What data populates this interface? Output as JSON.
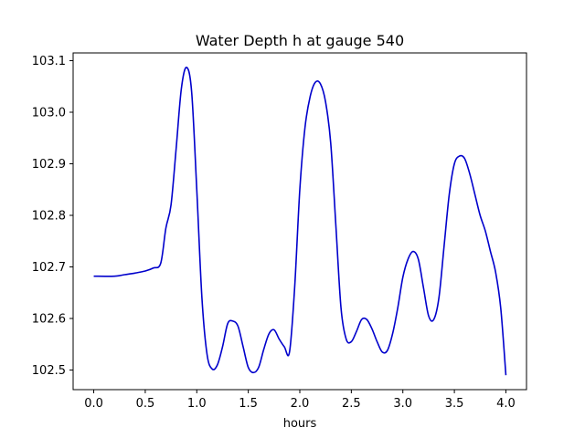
{
  "chart_data": {
    "type": "line",
    "title": "Water Depth h at gauge 540",
    "xlabel": "hours",
    "ylabel": "",
    "xlim": [
      -0.2,
      4.2
    ],
    "ylim": [
      102.462,
      103.115
    ],
    "xticks": [
      0.0,
      0.5,
      1.0,
      1.5,
      2.0,
      2.5,
      3.0,
      3.5,
      4.0
    ],
    "xtick_labels": [
      "0.0",
      "0.5",
      "1.0",
      "1.5",
      "2.0",
      "2.5",
      "3.0",
      "3.5",
      "4.0"
    ],
    "yticks": [
      102.5,
      102.6,
      102.7,
      102.8,
      102.9,
      103.0,
      103.1
    ],
    "ytick_labels": [
      "102.5",
      "102.6",
      "102.7",
      "102.8",
      "102.9",
      "103.0",
      "103.1"
    ],
    "grid": false,
    "series": [
      {
        "color": "#0000cc",
        "points": [
          [
            0.0,
            102.682
          ],
          [
            0.2,
            102.682
          ],
          [
            0.3,
            102.685
          ],
          [
            0.4,
            102.688
          ],
          [
            0.5,
            102.692
          ],
          [
            0.58,
            102.698
          ],
          [
            0.65,
            102.707
          ],
          [
            0.7,
            102.775
          ],
          [
            0.75,
            102.82
          ],
          [
            0.8,
            102.93
          ],
          [
            0.85,
            103.045
          ],
          [
            0.9,
            103.087
          ],
          [
            0.95,
            103.04
          ],
          [
            1.0,
            102.85
          ],
          [
            1.05,
            102.64
          ],
          [
            1.1,
            102.53
          ],
          [
            1.15,
            102.502
          ],
          [
            1.2,
            102.51
          ],
          [
            1.25,
            102.545
          ],
          [
            1.3,
            102.59
          ],
          [
            1.35,
            102.595
          ],
          [
            1.4,
            102.585
          ],
          [
            1.45,
            102.545
          ],
          [
            1.5,
            102.505
          ],
          [
            1.55,
            102.495
          ],
          [
            1.6,
            102.505
          ],
          [
            1.65,
            102.54
          ],
          [
            1.7,
            102.57
          ],
          [
            1.75,
            102.578
          ],
          [
            1.8,
            102.56
          ],
          [
            1.85,
            102.545
          ],
          [
            1.9,
            102.535
          ],
          [
            1.95,
            102.66
          ],
          [
            2.0,
            102.85
          ],
          [
            2.05,
            102.97
          ],
          [
            2.1,
            103.03
          ],
          [
            2.15,
            103.058
          ],
          [
            2.2,
            103.055
          ],
          [
            2.25,
            103.02
          ],
          [
            2.3,
            102.94
          ],
          [
            2.35,
            102.78
          ],
          [
            2.4,
            102.62
          ],
          [
            2.45,
            102.56
          ],
          [
            2.5,
            102.555
          ],
          [
            2.55,
            102.575
          ],
          [
            2.6,
            102.598
          ],
          [
            2.65,
            102.598
          ],
          [
            2.7,
            102.58
          ],
          [
            2.75,
            102.555
          ],
          [
            2.8,
            102.535
          ],
          [
            2.85,
            102.538
          ],
          [
            2.9,
            102.57
          ],
          [
            2.95,
            102.62
          ],
          [
            3.0,
            102.68
          ],
          [
            3.05,
            102.715
          ],
          [
            3.1,
            102.73
          ],
          [
            3.15,
            102.715
          ],
          [
            3.2,
            102.66
          ],
          [
            3.25,
            102.605
          ],
          [
            3.3,
            102.598
          ],
          [
            3.35,
            102.64
          ],
          [
            3.4,
            102.74
          ],
          [
            3.45,
            102.84
          ],
          [
            3.5,
            102.9
          ],
          [
            3.55,
            102.915
          ],
          [
            3.6,
            102.91
          ],
          [
            3.65,
            102.88
          ],
          [
            3.7,
            102.84
          ],
          [
            3.75,
            102.8
          ],
          [
            3.8,
            102.77
          ],
          [
            3.85,
            102.73
          ],
          [
            3.9,
            102.69
          ],
          [
            3.95,
            102.62
          ],
          [
            4.0,
            102.49
          ]
        ]
      }
    ]
  }
}
